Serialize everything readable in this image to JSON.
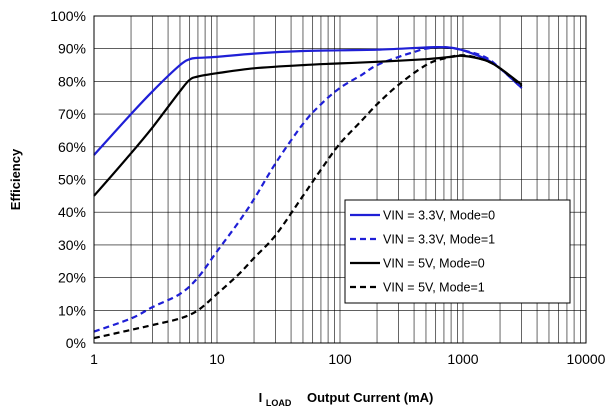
{
  "chart_data": {
    "type": "line",
    "xscale": "log",
    "xlim": [
      1,
      10000
    ],
    "ylim": [
      0,
      100
    ],
    "x_ticks": [
      "1",
      "10",
      "100",
      "1000",
      "10000"
    ],
    "y_ticks": [
      "0%",
      "10%",
      "20%",
      "30%",
      "40%",
      "50%",
      "60%",
      "70%",
      "80%",
      "90%",
      "100%"
    ],
    "ylabel": "Efficiency",
    "xlabel_prefix": "I",
    "xlabel_sub": "LOAD",
    "xlabel": "Output Current (mA)",
    "grid": true,
    "legend_position": "lower-right",
    "series": [
      {
        "name": "VIN = 3.3V, Mode=0",
        "color": "#1f1fd6",
        "dash": "solid",
        "x": [
          1,
          2,
          3,
          5,
          6,
          7,
          10,
          20,
          50,
          100,
          200,
          400,
          600,
          800,
          1000,
          1500,
          2000,
          3000
        ],
        "y": [
          57.5,
          70,
          77,
          85,
          86.8,
          87.2,
          87.5,
          88.5,
          89.3,
          89.5,
          89.7,
          90.2,
          90.5,
          90.3,
          89.5,
          87,
          84,
          78
        ]
      },
      {
        "name": "VIN = 3.3V, Mode=1",
        "color": "#1f1fd6",
        "dash": "dashed",
        "x": [
          1,
          2,
          3,
          5,
          7,
          10,
          15,
          20,
          30,
          50,
          70,
          100,
          150,
          200,
          300,
          400,
          500,
          700,
          1000,
          1500,
          2000,
          3000
        ],
        "y": [
          3.5,
          7.5,
          11,
          15,
          20,
          28,
          37,
          44,
          55,
          67,
          73,
          78,
          82,
          85,
          87.5,
          89,
          90,
          90.5,
          89.5,
          87.5,
          84,
          78
        ]
      },
      {
        "name": "VIN = 5V, Mode=0",
        "color": "#000000",
        "dash": "solid",
        "x": [
          1,
          2,
          3,
          5,
          6,
          7,
          10,
          20,
          50,
          100,
          200,
          500,
          800,
          1000,
          1500,
          2000,
          3000
        ],
        "y": [
          45,
          58,
          66,
          77,
          80.5,
          81.5,
          82.5,
          84,
          85,
          85.5,
          86,
          86.8,
          87.5,
          87.8,
          86.5,
          84,
          79
        ]
      },
      {
        "name": "VIN = 5V, Mode=1",
        "color": "#000000",
        "dash": "dashed",
        "x": [
          1,
          2,
          3,
          5,
          7,
          10,
          15,
          20,
          30,
          50,
          70,
          100,
          150,
          200,
          300,
          500,
          700,
          1000,
          1500,
          2000,
          3000
        ],
        "y": [
          1.5,
          4,
          5.5,
          7.5,
          10,
          15,
          21,
          26,
          33,
          45,
          53,
          61,
          68,
          73,
          79,
          85,
          87,
          88,
          86.5,
          84,
          78.5
        ]
      }
    ]
  }
}
